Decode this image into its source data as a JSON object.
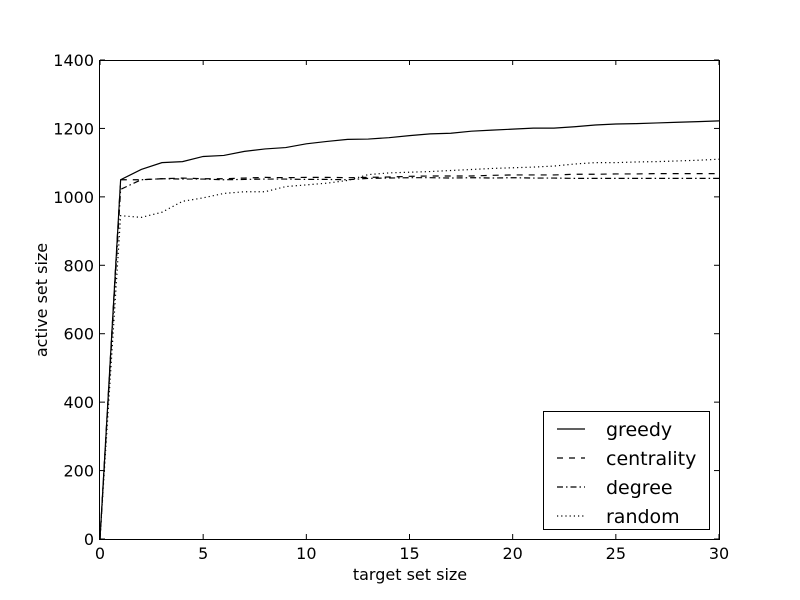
{
  "chart_data": {
    "type": "line",
    "title": "",
    "xlabel": "target set size",
    "ylabel": "active set size",
    "xlim": [
      0,
      30
    ],
    "ylim": [
      0,
      1400
    ],
    "xticks": [
      0,
      5,
      10,
      15,
      20,
      25,
      30
    ],
    "yticks": [
      0,
      200,
      400,
      600,
      800,
      1000,
      1200,
      1400
    ],
    "grid": false,
    "legend_position": "lower-right",
    "x": [
      0,
      1,
      2,
      3,
      4,
      5,
      6,
      7,
      8,
      9,
      10,
      11,
      12,
      13,
      14,
      15,
      16,
      17,
      18,
      19,
      20,
      21,
      22,
      23,
      24,
      25,
      26,
      27,
      28,
      29,
      30
    ],
    "series": [
      {
        "name": "greedy",
        "style": "solid",
        "values": [
          0,
          1050,
          1080,
          1100,
          1103,
          1118,
          1121,
          1133,
          1140,
          1144,
          1155,
          1162,
          1168,
          1169,
          1173,
          1179,
          1184,
          1186,
          1192,
          1195,
          1198,
          1201,
          1201,
          1205,
          1210,
          1213,
          1214,
          1216,
          1218,
          1220,
          1222
        ]
      },
      {
        "name": "centrality",
        "style": "dashed",
        "values": [
          0,
          1050,
          1050,
          1053,
          1055,
          1053,
          1053,
          1055,
          1057,
          1056,
          1057,
          1057,
          1056,
          1057,
          1058,
          1060,
          1061,
          1061,
          1061,
          1063,
          1064,
          1064,
          1064,
          1066,
          1066,
          1067,
          1067,
          1068,
          1068,
          1068,
          1068
        ]
      },
      {
        "name": "degree",
        "style": "dashdot",
        "values": [
          0,
          1022,
          1050,
          1053,
          1052,
          1052,
          1050,
          1051,
          1052,
          1052,
          1051,
          1051,
          1050,
          1054,
          1055,
          1056,
          1056,
          1055,
          1056,
          1055,
          1056,
          1055,
          1055,
          1054,
          1054,
          1054,
          1054,
          1054,
          1054,
          1054,
          1054
        ]
      },
      {
        "name": "random",
        "style": "dotted",
        "values": [
          0,
          945,
          940,
          955,
          987,
          997,
          1010,
          1015,
          1015,
          1030,
          1035,
          1040,
          1048,
          1065,
          1070,
          1072,
          1074,
          1077,
          1080,
          1083,
          1085,
          1087,
          1090,
          1096,
          1100,
          1100,
          1102,
          1103,
          1105,
          1107,
          1110
        ]
      }
    ]
  }
}
